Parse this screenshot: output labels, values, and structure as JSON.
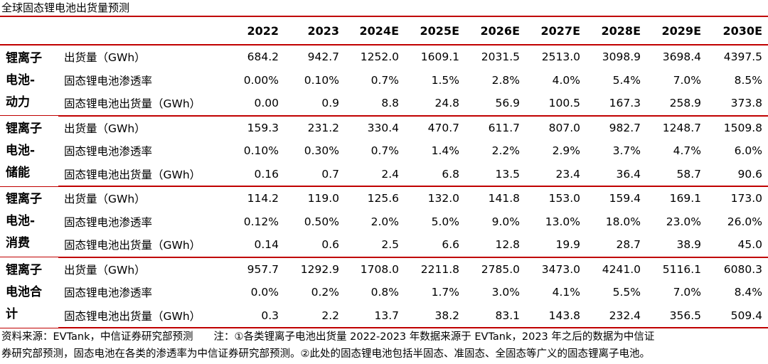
{
  "title": "全球固态锂电池出货量预测",
  "columns": [
    "2022",
    "2023",
    "2024E",
    "2025E",
    "2026E",
    "2027E",
    "2028E",
    "2029E",
    "2030E"
  ],
  "groups": [
    {
      "label_lines": [
        "锂离子",
        "电池-",
        "动力"
      ],
      "rows": [
        {
          "metric": "出货量（GWh）",
          "values": [
            "684.2",
            "942.7",
            "1252.0",
            "1609.1",
            "2031.5",
            "2513.0",
            "3098.9",
            "3698.4",
            "4397.5"
          ]
        },
        {
          "metric": "固态锂电池渗透率",
          "values": [
            "0.00%",
            "0.10%",
            "0.7%",
            "1.5%",
            "2.8%",
            "4.0%",
            "5.4%",
            "7.0%",
            "8.5%"
          ]
        },
        {
          "metric": "固态锂电池出货量（GWh）",
          "values": [
            "0.00",
            "0.9",
            "8.8",
            "24.8",
            "56.9",
            "100.5",
            "167.3",
            "258.9",
            "373.8"
          ]
        }
      ]
    },
    {
      "label_lines": [
        "锂离子",
        "电池-",
        "储能"
      ],
      "rows": [
        {
          "metric": "出货量（GWh）",
          "values": [
            "159.3",
            "231.2",
            "330.4",
            "470.7",
            "611.7",
            "807.0",
            "982.7",
            "1248.7",
            "1509.8"
          ]
        },
        {
          "metric": "固态锂电池渗透率",
          "values": [
            "0.10%",
            "0.30%",
            "0.7%",
            "1.4%",
            "2.2%",
            "2.9%",
            "3.7%",
            "4.7%",
            "6.0%"
          ]
        },
        {
          "metric": "固态锂电池出货量（GWh）",
          "values": [
            "0.16",
            "0.7",
            "2.4",
            "6.8",
            "13.5",
            "23.4",
            "36.4",
            "58.7",
            "90.6"
          ]
        }
      ]
    },
    {
      "label_lines": [
        "锂离子",
        "电池-",
        "消费"
      ],
      "rows": [
        {
          "metric": "出货量（GWh）",
          "values": [
            "114.2",
            "119.0",
            "125.6",
            "132.0",
            "141.8",
            "153.0",
            "159.4",
            "169.1",
            "173.0"
          ]
        },
        {
          "metric": "固态锂电池渗透率",
          "values": [
            "0.12%",
            "0.50%",
            "2.0%",
            "5.0%",
            "9.0%",
            "13.0%",
            "18.0%",
            "23.0%",
            "26.0%"
          ]
        },
        {
          "metric": "固态锂电池出货量（GWh）",
          "values": [
            "0.14",
            "0.6",
            "2.5",
            "6.6",
            "12.8",
            "19.9",
            "28.7",
            "38.9",
            "45.0"
          ]
        }
      ]
    },
    {
      "label_lines": [
        "锂离子",
        "电池合",
        "计"
      ],
      "rows": [
        {
          "metric": "出货量（GWh）",
          "values": [
            "957.7",
            "1292.9",
            "1708.0",
            "2211.8",
            "2785.0",
            "3473.0",
            "4241.0",
            "5116.1",
            "6080.3"
          ]
        },
        {
          "metric": "固态锂电池渗透率",
          "values": [
            "0.0%",
            "0.2%",
            "0.8%",
            "1.7%",
            "3.0%",
            "4.1%",
            "5.5%",
            "7.0%",
            "8.4%"
          ]
        },
        {
          "metric": "固态锂电池出货量（GWh）",
          "values": [
            "0.3",
            "2.2",
            "13.7",
            "38.2",
            "83.1",
            "143.8",
            "232.4",
            "356.5",
            "509.4"
          ]
        }
      ]
    }
  ],
  "footer": {
    "source_line": "资料来源：EVTank，中信证券研究部预测　　注：①各类锂离子电池出货量 2022-2023 年数据来源于 EVTank，2023 年之后的数据为中信证",
    "note_line": "券研究部预测，固态电池在各类的渗透率为中信证券研究部预测。②此处的固态锂电池包括半固态、准固态、全固态等广义的固态锂离子电池。"
  },
  "colors": {
    "rule": "#c00000",
    "text": "#000000",
    "background": "#ffffff"
  }
}
